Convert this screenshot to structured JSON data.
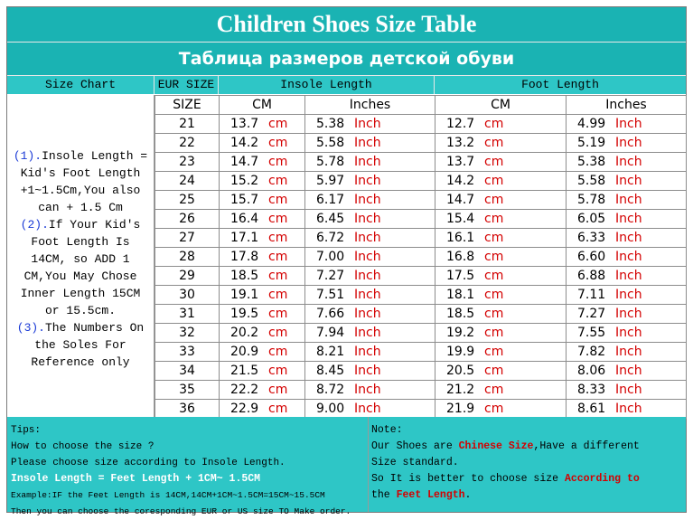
{
  "title": "Children Shoes Size Table",
  "subtitle": "Таблица размеров детской обуви",
  "headers": {
    "size_chart": "Size Chart",
    "eur_size": "EUR SIZE",
    "insole_length": "Insole Length",
    "foot_length": "Foot Length",
    "size": "SIZE",
    "cm": "CM",
    "inches": "Inches",
    "unit_cm": "cm",
    "unit_inch": "Inch"
  },
  "left_note": {
    "n1": "(1).",
    "t1a": "Insole Length =",
    "t1b": "Kid's Foot Length",
    "t1c": "+1~1.5Cm,You also",
    "t1d": "can + 1.5 Cm",
    "n2": "(2).",
    "t2a": "If Your Kid's",
    "t2b": "Foot Length Is",
    "t2c": "14CM,  so ADD 1",
    "t2d": "CM,You May Chose",
    "t2e": "Inner Length 15CM",
    "t2f": "or 15.5cm.",
    "n3": "(3).",
    "t3a": "The Numbers On",
    "t3b": "the Soles For",
    "t3c": "Reference only"
  },
  "rows": [
    {
      "size": "21",
      "insole_cm": "13.7",
      "insole_in": "5.38",
      "foot_cm": "12.7",
      "foot_in": "4.99"
    },
    {
      "size": "22",
      "insole_cm": "14.2",
      "insole_in": "5.58",
      "foot_cm": "13.2",
      "foot_in": "5.19"
    },
    {
      "size": "23",
      "insole_cm": "14.7",
      "insole_in": "5.78",
      "foot_cm": "13.7",
      "foot_in": "5.38"
    },
    {
      "size": "24",
      "insole_cm": "15.2",
      "insole_in": "5.97",
      "foot_cm": "14.2",
      "foot_in": "5.58"
    },
    {
      "size": "25",
      "insole_cm": "15.7",
      "insole_in": "6.17",
      "foot_cm": "14.7",
      "foot_in": "5.78"
    },
    {
      "size": "26",
      "insole_cm": "16.4",
      "insole_in": "6.45",
      "foot_cm": "15.4",
      "foot_in": "6.05"
    },
    {
      "size": "27",
      "insole_cm": "17.1",
      "insole_in": "6.72",
      "foot_cm": "16.1",
      "foot_in": "6.33"
    },
    {
      "size": "28",
      "insole_cm": "17.8",
      "insole_in": "7.00",
      "foot_cm": "16.8",
      "foot_in": "6.60"
    },
    {
      "size": "29",
      "insole_cm": "18.5",
      "insole_in": "7.27",
      "foot_cm": "17.5",
      "foot_in": "6.88"
    },
    {
      "size": "30",
      "insole_cm": "19.1",
      "insole_in": "7.51",
      "foot_cm": "18.1",
      "foot_in": "7.11"
    },
    {
      "size": "31",
      "insole_cm": "19.5",
      "insole_in": "7.66",
      "foot_cm": "18.5",
      "foot_in": "7.27"
    },
    {
      "size": "32",
      "insole_cm": "20.2",
      "insole_in": "7.94",
      "foot_cm": "19.2",
      "foot_in": "7.55"
    },
    {
      "size": "33",
      "insole_cm": "20.9",
      "insole_in": "8.21",
      "foot_cm": "19.9",
      "foot_in": "7.82"
    },
    {
      "size": "34",
      "insole_cm": "21.5",
      "insole_in": "8.45",
      "foot_cm": "20.5",
      "foot_in": "8.06"
    },
    {
      "size": "35",
      "insole_cm": "22.2",
      "insole_in": "8.72",
      "foot_cm": "21.2",
      "foot_in": "8.33"
    },
    {
      "size": "36",
      "insole_cm": "22.9",
      "insole_in": "9.00",
      "foot_cm": "21.9",
      "foot_in": "8.61"
    }
  ],
  "tips": {
    "label": "Tips:",
    "line1": "How to choose the size ?",
    "line2": "Please choose size according to Insole Length.",
    "formula": "Insole Length = Feet Length + 1CM~ 1.5CM",
    "example": "Example:IF the Feet Length is 14CM,14CM+1CM~1.5CM=15CM~15.5CM",
    "line3": "Then you can choose the coresponding EUR or US size TO Make order."
  },
  "note": {
    "label": "Note:",
    "a1": "Our Shoes are ",
    "a_red": "Chinese Size",
    "a2": ",Have a different",
    "b": "Size standard.",
    "c1": "So It is better to choose size ",
    "c_red": "According to",
    "d1": "the ",
    "d_red": "Feet Length",
    "d2": "."
  },
  "colors": {
    "banner": "#1ab3b3",
    "header": "#2ec6c6",
    "unit_red": "#d40000",
    "note_blue": "#1a3ad6"
  }
}
